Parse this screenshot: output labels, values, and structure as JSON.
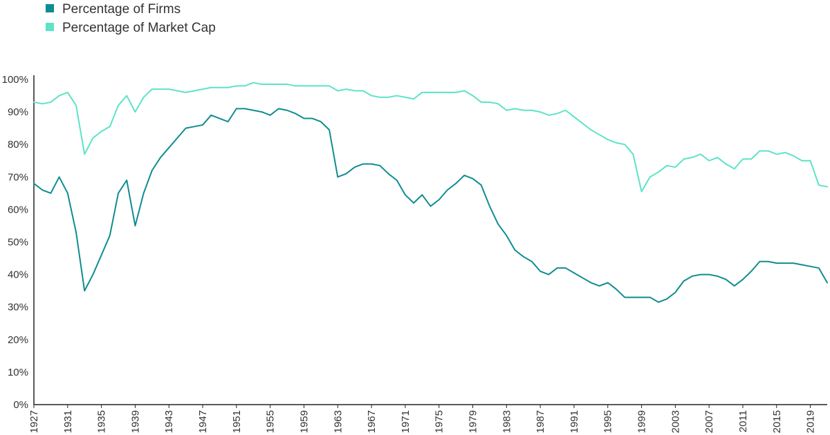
{
  "chart_data": {
    "type": "line",
    "title": "",
    "xlabel": "",
    "ylabel": "",
    "ylim": [
      0,
      100
    ],
    "xlim": [
      1927,
      2021
    ],
    "grid": false,
    "legend_position": "top-left",
    "x_tick_labels": [
      "1927",
      "1931",
      "1935",
      "1939",
      "1943",
      "1947",
      "1951",
      "1955",
      "1959",
      "1963",
      "1967",
      "1971",
      "1975",
      "1979",
      "1983",
      "1987",
      "1991",
      "1995",
      "1999",
      "2003",
      "2007",
      "2011",
      "2015",
      "2019"
    ],
    "y_tick_labels": [
      "0%",
      "10%",
      "20%",
      "30%",
      "40%",
      "50%",
      "60%",
      "70%",
      "80%",
      "90%",
      "100%"
    ],
    "x": [
      1927,
      1928,
      1929,
      1930,
      1931,
      1932,
      1933,
      1934,
      1935,
      1936,
      1937,
      1938,
      1939,
      1940,
      1941,
      1942,
      1943,
      1944,
      1945,
      1946,
      1947,
      1948,
      1949,
      1950,
      1951,
      1952,
      1953,
      1954,
      1955,
      1956,
      1957,
      1958,
      1959,
      1960,
      1961,
      1962,
      1963,
      1964,
      1965,
      1966,
      1967,
      1968,
      1969,
      1970,
      1971,
      1972,
      1973,
      1974,
      1975,
      1976,
      1977,
      1978,
      1979,
      1980,
      1981,
      1982,
      1983,
      1984,
      1985,
      1986,
      1987,
      1988,
      1989,
      1990,
      1991,
      1992,
      1993,
      1994,
      1995,
      1996,
      1997,
      1998,
      1999,
      2000,
      2001,
      2002,
      2003,
      2004,
      2005,
      2006,
      2007,
      2008,
      2009,
      2010,
      2011,
      2012,
      2013,
      2014,
      2015,
      2016,
      2017,
      2018,
      2019,
      2020,
      2021
    ],
    "series": [
      {
        "name": "Percentage of Firms",
        "color": "#0e8c8f",
        "values": [
          68,
          66,
          65,
          70,
          65,
          53,
          35,
          40,
          46,
          52,
          65,
          69,
          55,
          65,
          72,
          76,
          79,
          82,
          85,
          85.5,
          86,
          89,
          88,
          87,
          91,
          91,
          90.5,
          90,
          89,
          91,
          90.5,
          89.5,
          88,
          88,
          87,
          84.5,
          70,
          71,
          73,
          74,
          74,
          73.5,
          71,
          69,
          64.5,
          62,
          64.5,
          61,
          63,
          66,
          68,
          70.5,
          69.5,
          67.5,
          61,
          55.5,
          52,
          47.5,
          45.5,
          44,
          41,
          40,
          42,
          42,
          40.5,
          39,
          37.5,
          36.5,
          37.5,
          35.5,
          33,
          33,
          33,
          33,
          31.5,
          32.5,
          34.5,
          38,
          39.5,
          40,
          40,
          39.5,
          38.5,
          36.5,
          38.5,
          41,
          44,
          44,
          43.5,
          43.5,
          43.5,
          43,
          42.5,
          42,
          37.5
        ]
      },
      {
        "name": "Percentage of Market Cap",
        "color": "#5de3c6",
        "values": [
          93,
          92.5,
          93,
          95,
          96,
          92,
          77,
          82,
          84,
          85.5,
          92,
          95,
          90,
          94.5,
          97,
          97,
          97,
          96.5,
          96,
          96.5,
          97,
          97.5,
          97.5,
          97.5,
          98,
          98,
          99,
          98.5,
          98.5,
          98.5,
          98.5,
          98,
          98,
          98,
          98,
          98,
          96.5,
          97,
          96.5,
          96.5,
          95,
          94.5,
          94.5,
          95,
          94.5,
          94,
          96,
          96,
          96,
          96,
          96,
          96.5,
          95,
          93,
          93,
          92.5,
          90.5,
          91,
          90.5,
          90.5,
          90,
          89,
          89.5,
          90.5,
          88.5,
          86.5,
          84.5,
          83,
          81.5,
          80.5,
          80,
          77,
          65.5,
          70,
          71.5,
          73.5,
          73,
          75.5,
          76,
          77,
          75,
          76,
          74,
          72.5,
          75.5,
          75.5,
          78,
          78,
          77,
          77.5,
          76.5,
          75,
          75,
          67.5,
          67
        ]
      }
    ]
  }
}
